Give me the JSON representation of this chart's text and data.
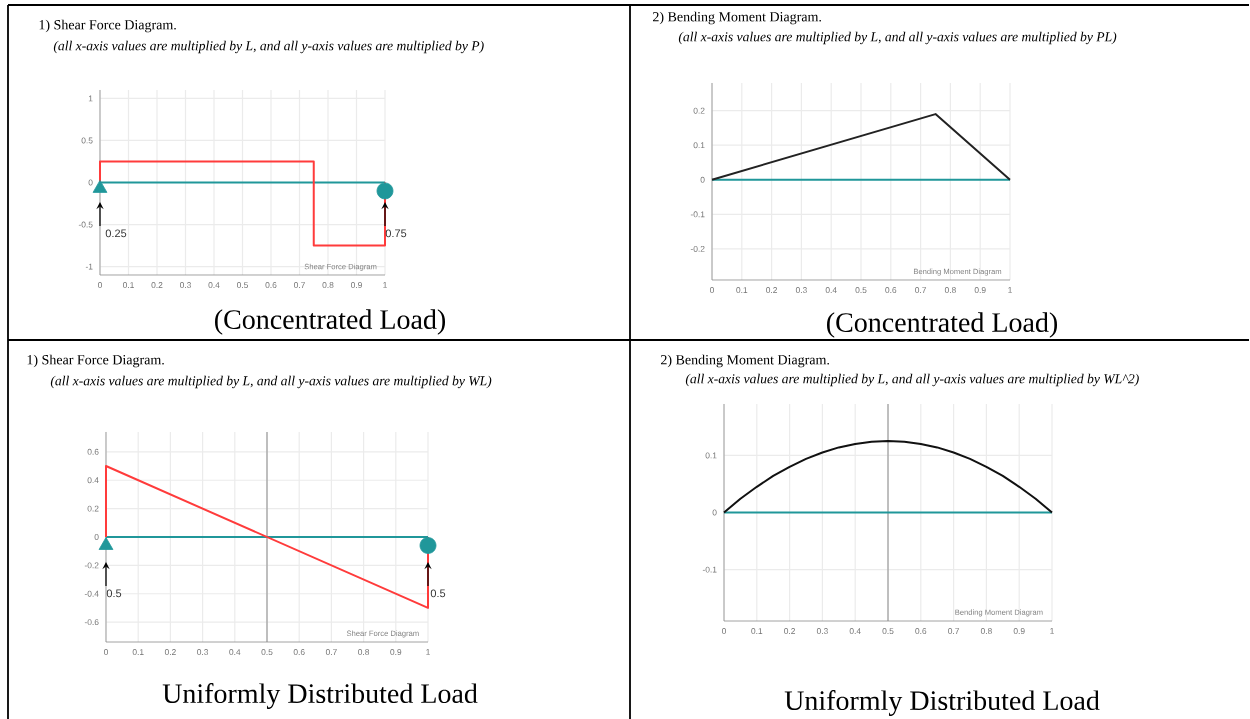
{
  "chart_data": [
    {
      "type": "line",
      "title": "1)  Shear Force Diagram.",
      "subtitle": "(all x-axis values are multiplied by L, and all y-axis values are multiplied by P)",
      "xlim": [
        0,
        1
      ],
      "ylim": [
        -1.1,
        1.1
      ],
      "xticks": [
        0,
        0.1,
        0.2,
        0.3,
        0.4,
        0.5,
        0.6,
        0.7,
        0.8,
        0.9,
        1
      ],
      "yticks": [
        -1,
        -0.5,
        0,
        0.5,
        1
      ],
      "grid": true,
      "series": [
        {
          "color": "#20979a",
          "x": [
            0,
            1
          ],
          "values": [
            0,
            0
          ]
        },
        {
          "color": "#ff3b3b",
          "x": [
            0,
            0,
            0.75,
            0.75,
            1,
            1
          ],
          "values": [
            0,
            0.25,
            0.25,
            -0.75,
            -0.75,
            0
          ]
        },
        {
          "type": "scatter",
          "marker": "triangle",
          "color": "#20979a",
          "x": [
            0
          ],
          "values": [
            -0.07
          ]
        },
        {
          "type": "scatter",
          "marker": "circle",
          "color": "#20979a",
          "x": [
            1
          ],
          "values": [
            -0.1
          ]
        }
      ],
      "annotations": [
        "Shear Force Diagram",
        "(Concentrated Load)",
        "0.25",
        "0.75"
      ]
    },
    {
      "type": "line",
      "title": "2)  Bending Moment Diagram.",
      "subtitle": "(all x-axis values are multiplied by L, and all y-axis values are multiplied by PL)",
      "xlim": [
        0,
        1
      ],
      "ylim": [
        -0.29,
        0.28
      ],
      "xticks": [
        0,
        0.1,
        0.2,
        0.3,
        0.4,
        0.5,
        0.6,
        0.7,
        0.8,
        0.9,
        1
      ],
      "yticks": [
        -0.2,
        -0.1,
        0,
        0.1,
        0.2
      ],
      "grid": true,
      "series": [
        {
          "color": "#20979a",
          "x": [
            0,
            1
          ],
          "values": [
            0,
            0
          ]
        },
        {
          "color": "#222222",
          "x": [
            0,
            0.75,
            1
          ],
          "values": [
            0,
            0.19,
            0
          ]
        }
      ],
      "annotations": [
        "Bending Moment Diagram",
        "(Concentrated Load)"
      ]
    },
    {
      "type": "line",
      "title": "1)  Shear Force Diagram.",
      "subtitle": "(all x-axis values are multiplied by L, and all y-axis values are multiplied by WL)",
      "xlim": [
        0,
        1
      ],
      "ylim": [
        -0.74,
        0.74
      ],
      "xticks": [
        0,
        0.1,
        0.2,
        0.3,
        0.4,
        0.5,
        0.6,
        0.7,
        0.8,
        0.9,
        1
      ],
      "yticks": [
        -0.6,
        -0.4,
        -0.2,
        0,
        0.2,
        0.4,
        0.6
      ],
      "grid": true,
      "ref_lines": [
        {
          "axis": "x",
          "value": 0.5,
          "color": "#8a8a8a"
        }
      ],
      "series": [
        {
          "color": "#20979a",
          "x": [
            0,
            1
          ],
          "values": [
            0,
            0
          ]
        },
        {
          "color": "#ff3b3b",
          "x": [
            0,
            0,
            1,
            1
          ],
          "values": [
            0,
            0.5,
            -0.5,
            0
          ]
        },
        {
          "type": "scatter",
          "marker": "triangle",
          "color": "#20979a",
          "x": [
            0
          ],
          "values": [
            -0.06
          ]
        },
        {
          "type": "scatter",
          "marker": "circle",
          "color": "#20979a",
          "x": [
            1
          ],
          "values": [
            -0.06
          ]
        }
      ],
      "annotations": [
        "Shear Force Diagram",
        "Uniformly Distributed Load",
        "0.5",
        "0.5"
      ]
    },
    {
      "type": "line",
      "title": "2)  Bending Moment Diagram.",
      "subtitle": "(all x-axis values are multiplied by L, and all y-axis values are multiplied by WL^2)",
      "xlim": [
        0,
        1
      ],
      "ylim": [
        -0.19,
        0.19
      ],
      "xticks": [
        0,
        0.1,
        0.2,
        0.3,
        0.4,
        0.5,
        0.6,
        0.7,
        0.8,
        0.9,
        1
      ],
      "yticks": [
        -0.1,
        0,
        0.1
      ],
      "grid": true,
      "ref_lines": [
        {
          "axis": "x",
          "value": 0.5,
          "color": "#8a8a8a"
        }
      ],
      "series": [
        {
          "color": "#20979a",
          "x": [
            0,
            1
          ],
          "values": [
            0,
            0
          ]
        },
        {
          "color": "#111111",
          "x": [
            0,
            0.05,
            0.1,
            0.15,
            0.2,
            0.25,
            0.3,
            0.35,
            0.4,
            0.45,
            0.5,
            0.55,
            0.6,
            0.65,
            0.7,
            0.75,
            0.8,
            0.85,
            0.9,
            0.95,
            1
          ],
          "values": [
            0,
            0.024,
            0.045,
            0.064,
            0.08,
            0.094,
            0.105,
            0.114,
            0.12,
            0.124,
            0.125,
            0.124,
            0.12,
            0.114,
            0.105,
            0.094,
            0.08,
            0.064,
            0.045,
            0.024,
            0
          ]
        }
      ],
      "annotations": [
        "Bending Moment Diagram",
        "Uniformly Distributed Load"
      ]
    }
  ]
}
